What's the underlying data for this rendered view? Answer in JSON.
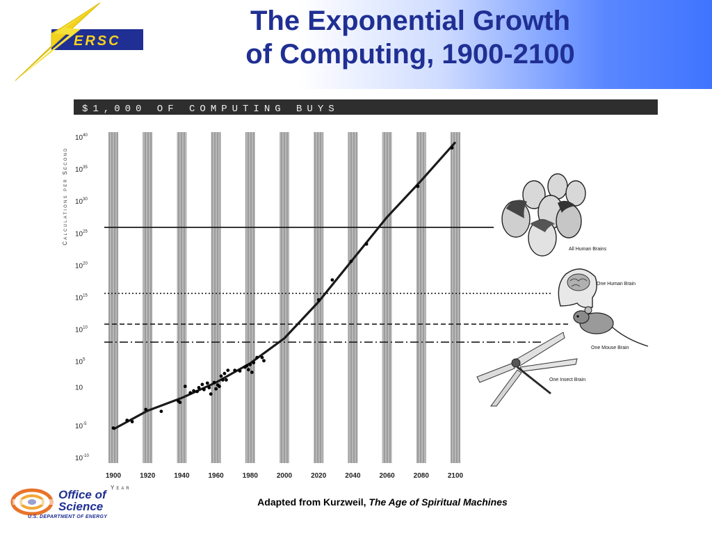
{
  "slide": {
    "title_line1": "The Exponential Growth",
    "title_line2": "of Computing, 1900-2100",
    "logo_text": "ERSC",
    "caption_prefix": "Adapted from Kurzweil, ",
    "caption_book": "The Age of Spiritual Machines",
    "doe_office_line1": "Office of",
    "doe_office_line2": "Science",
    "doe_department": "U.S. DEPARTMENT OF ENERGY",
    "colors": {
      "title": "#1f2f93",
      "banner": "#2e2e2e",
      "bars": "#b0b0b0",
      "ink": "#1a1a1a"
    }
  },
  "chart_data": {
    "type": "scatter",
    "banner": "$1,000 OF COMPUTING BUYS",
    "ylabel": "Calculations per Second",
    "xlabel": "Year",
    "x_ticks": [
      "1900",
      "1920",
      "1940",
      "1960",
      "1980",
      "2000",
      "2020",
      "2040",
      "2060",
      "2080",
      "2100"
    ],
    "y_ticks": [
      {
        "base": "10",
        "exp": "40",
        "value": 40
      },
      {
        "base": "10",
        "exp": "35",
        "value": 35
      },
      {
        "base": "10",
        "exp": "30",
        "value": 30
      },
      {
        "base": "10",
        "exp": "25",
        "value": 25
      },
      {
        "base": "10",
        "exp": "20",
        "value": 20
      },
      {
        "base": "10",
        "exp": "15",
        "value": 15
      },
      {
        "base": "10",
        "exp": "10",
        "value": 10
      },
      {
        "base": "10",
        "exp": "5",
        "value": 5
      },
      {
        "base": "10",
        "exp": "",
        "value": 1
      },
      {
        "base": "10",
        "exp": "-5",
        "value": -5
      },
      {
        "base": "10",
        "exp": "-10",
        "value": -10
      }
    ],
    "log_scale": true,
    "xlim": [
      1900,
      2100
    ],
    "ylim": [
      -10,
      40
    ],
    "points": [
      {
        "x": 1900,
        "y": -5.4
      },
      {
        "x": 1908,
        "y": -4.2
      },
      {
        "x": 1911,
        "y": -4.4
      },
      {
        "x": 1919,
        "y": -2.5
      },
      {
        "x": 1928,
        "y": -2.8
      },
      {
        "x": 1938,
        "y": -1.2
      },
      {
        "x": 1939,
        "y": -1.4
      },
      {
        "x": 1942,
        "y": 1.1
      },
      {
        "x": 1945,
        "y": 0.1
      },
      {
        "x": 1947,
        "y": 0.4
      },
      {
        "x": 1949,
        "y": 0.3
      },
      {
        "x": 1950,
        "y": 0.9
      },
      {
        "x": 1952,
        "y": 1.4
      },
      {
        "x": 1953,
        "y": 0.6
      },
      {
        "x": 1955,
        "y": 1.6
      },
      {
        "x": 1956,
        "y": 0.9
      },
      {
        "x": 1957,
        "y": -0.1
      },
      {
        "x": 1959,
        "y": 1.7
      },
      {
        "x": 1960,
        "y": 0.7
      },
      {
        "x": 1961,
        "y": 1.3
      },
      {
        "x": 1962,
        "y": 1.1
      },
      {
        "x": 1963,
        "y": 2.7
      },
      {
        "x": 1964,
        "y": 2.1
      },
      {
        "x": 1965,
        "y": 3.1
      },
      {
        "x": 1966,
        "y": 2.1
      },
      {
        "x": 1967,
        "y": 3.6
      },
      {
        "x": 1971,
        "y": 3.6
      },
      {
        "x": 1974,
        "y": 3.5
      },
      {
        "x": 1977,
        "y": 4.1
      },
      {
        "x": 1978,
        "y": 4.3
      },
      {
        "x": 1979,
        "y": 3.7
      },
      {
        "x": 1980,
        "y": 4.5
      },
      {
        "x": 1981,
        "y": 3.3
      },
      {
        "x": 1982,
        "y": 4.8
      },
      {
        "x": 1984,
        "y": 5.6
      },
      {
        "x": 1987,
        "y": 5.6
      },
      {
        "x": 1988,
        "y": 5.1
      },
      {
        "x": 2020,
        "y": 14.6
      },
      {
        "x": 2028,
        "y": 17.7
      },
      {
        "x": 2039,
        "y": 20.6
      },
      {
        "x": 2048,
        "y": 23.3
      },
      {
        "x": 2078,
        "y": 32.3
      },
      {
        "x": 2098,
        "y": 38.3
      }
    ],
    "trend": [
      {
        "x": 1900,
        "y": -5.6
      },
      {
        "x": 1920,
        "y": -2.7
      },
      {
        "x": 1940,
        "y": -0.7
      },
      {
        "x": 1960,
        "y": 1.7
      },
      {
        "x": 1980,
        "y": 4.7
      },
      {
        "x": 2000,
        "y": 8.6
      },
      {
        "x": 2020,
        "y": 14.3
      },
      {
        "x": 2040,
        "y": 20.9
      },
      {
        "x": 2060,
        "y": 27.5
      },
      {
        "x": 2080,
        "y": 33.2
      },
      {
        "x": 2100,
        "y": 39.2
      }
    ],
    "reference_lines": [
      {
        "label": "All Human Brains",
        "y": 25.9,
        "style": "solid"
      },
      {
        "label": "One Human Brain",
        "y": 15.6,
        "style": "dotted"
      },
      {
        "label": "One Mouse Brain",
        "y": 10.8,
        "style": "dashed"
      },
      {
        "label": "One Insect Brain",
        "y": 8.0,
        "style": "dashdot"
      }
    ],
    "grid": true
  }
}
